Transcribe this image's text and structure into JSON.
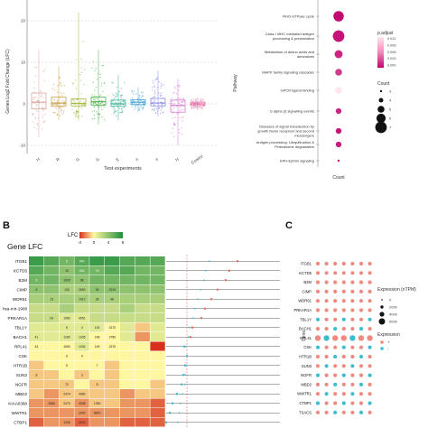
{
  "panelA": {
    "ylabel": "Genes Log2 Fold Change (LFC)",
    "xlabel": "Test experiments",
    "yticks": [
      "20",
      "10",
      "0",
      "-10"
    ],
    "categories": [
      "H",
      "R",
      "G",
      "G",
      "E",
      "F",
      "F",
      "H",
      "Control"
    ],
    "colors": [
      "#d9a7a0",
      "#c9a24a",
      "#a5b840",
      "#49b048",
      "#3bb39a",
      "#46a6d6",
      "#8a8ee0",
      "#d67ad0",
      "#e86fa7"
    ],
    "box_stats": [
      {
        "q1": -1.2,
        "median": 0.4,
        "q3": 2.6,
        "lo": -8,
        "hi": 13
      },
      {
        "q1": -0.6,
        "median": 0.2,
        "q3": 1.6,
        "lo": -4,
        "hi": 9
      },
      {
        "q1": -0.5,
        "median": 0.1,
        "q3": 1.2,
        "lo": -4,
        "hi": 22
      },
      {
        "q1": -0.3,
        "median": 0.5,
        "q3": 1.6,
        "lo": -5,
        "hi": 13
      },
      {
        "q1": -0.6,
        "median": 0.0,
        "q3": 0.9,
        "lo": -4,
        "hi": 7
      },
      {
        "q1": -0.2,
        "median": 0.4,
        "q3": 1.0,
        "lo": -2,
        "hi": 4
      },
      {
        "q1": -0.5,
        "median": 0.2,
        "q3": 1.3,
        "lo": -3,
        "hi": 8
      },
      {
        "q1": -2.0,
        "median": -0.4,
        "q3": 0.9,
        "lo": -10,
        "hi": 6
      },
      {
        "q1": -0.4,
        "median": 0.0,
        "q3": 0.4,
        "lo": -1.5,
        "hi": 1.5
      }
    ]
  },
  "panelDot": {
    "ylabel": "Pathway",
    "xlabel": "Count",
    "pathways": [
      "RHO GTPase cycle",
      "Class I MHC mediated antigen processing & presentation",
      "Metabolism of amino acids and derivatives",
      "MAPK family signaling cascades",
      "GPCR ligand binding",
      "G alpha (i) signalling events",
      "Diseases of signal transduction by growth factor receptors and second messengers",
      "Antigen processing: Ubiquitination & Proteasome degradation",
      "EPH-Ephrin signaling"
    ],
    "dots": [
      {
        "count": 6.5,
        "padjust": 0.0005
      },
      {
        "count": 7.0,
        "padjust": 0.001
      },
      {
        "count": 5.5,
        "padjust": 0.002
      },
      {
        "count": 5.0,
        "padjust": 0.003
      },
      {
        "count": 5.0,
        "padjust": 0.012
      },
      {
        "count": 4.5,
        "padjust": 0.002
      },
      {
        "count": 4.5,
        "padjust": 0.001
      },
      {
        "count": 4.5,
        "padjust": 0.0015
      },
      {
        "count": 3.0,
        "padjust": 0.001
      }
    ],
    "legend": {
      "padjust_title": "p.adjust",
      "padjust_ticks": [
        "0.012",
        "0.009",
        "0.006",
        "0.003",
        "0.000"
      ],
      "count_title": "Count",
      "count_ticks": [
        "3",
        "4",
        "5",
        "6",
        "7"
      ]
    }
  },
  "panelB": {
    "label": "B",
    "heatmap_title": "Gene LFC",
    "lfc_title": "LFC",
    "lfc_ticks": [
      "-4",
      "0",
      "4",
      "8"
    ],
    "genes": [
      "ITGB1",
      "KCTD5",
      "B2M",
      "CIMP",
      "WDR61",
      "hsa-mir-1908",
      "PRKAR1A",
      "TBL1Y",
      "BACH1",
      "RPL41",
      "CSK",
      "HTR1B",
      "SUN3",
      "NGFR",
      "MBD2",
      "KIAA0368",
      "WWTR1",
      "CTBP1"
    ],
    "cell_labels": [
      [
        "",
        "",
        "5",
        "947",
        "",
        "",
        "",
        "",
        ""
      ],
      [
        "",
        "",
        "10",
        "541",
        "74",
        "",
        "",
        "",
        ""
      ],
      [
        "6",
        "",
        "1029",
        "98",
        "",
        "",
        "",
        "",
        ""
      ],
      [
        "6",
        "",
        "126",
        "3050",
        "94",
        "2210",
        "",
        "",
        ""
      ],
      [
        "",
        "13",
        "",
        "1012",
        "36",
        "80",
        "",
        "",
        ""
      ],
      [
        "",
        "",
        "",
        "",
        "",
        "",
        "",
        "",
        ""
      ],
      [
        "",
        "24",
        "1080",
        "4051",
        "",
        "",
        "",
        "",
        ""
      ],
      [
        "",
        "",
        "8",
        "4",
        "100",
        "3170",
        "",
        "",
        ""
      ],
      [
        "41",
        "",
        "1180",
        "1035",
        "148",
        "2780",
        "",
        "",
        ""
      ],
      [
        "44",
        "",
        "1650",
        "1034",
        "149",
        "1570",
        "",
        "",
        ""
      ],
      [
        "",
        "",
        "6",
        "9",
        "",
        "",
        "",
        "",
        ""
      ],
      [
        "",
        "",
        "5",
        "",
        "7",
        "",
        "",
        "",
        ""
      ],
      [
        "8",
        "",
        "",
        "3",
        "",
        "",
        "",
        "",
        ""
      ],
      [
        "",
        "",
        "72",
        "",
        "8",
        "",
        "",
        "",
        ""
      ],
      [
        "",
        "",
        "2474",
        "4080",
        "",
        "",
        "",
        "",
        ""
      ],
      [
        "",
        "2580",
        "2473",
        "4038",
        "1390",
        "",
        "",
        "",
        ""
      ],
      [
        "",
        "",
        "",
        "2002",
        "5870",
        "",
        "",
        "",
        ""
      ],
      [
        "",
        "",
        "1205",
        "4024",
        "",
        "",
        "",
        "",
        ""
      ]
    ],
    "cell_values": [
      [
        7,
        6,
        5,
        6,
        7,
        7,
        6,
        6,
        6
      ],
      [
        6,
        5,
        4,
        5,
        5,
        6,
        6,
        5,
        5
      ],
      [
        5,
        5,
        4,
        4,
        5,
        5,
        5,
        5,
        5
      ],
      [
        4,
        4,
        3,
        3,
        4,
        4,
        4,
        4,
        4
      ],
      [
        3,
        3,
        3,
        3,
        3,
        3,
        3,
        3,
        3
      ],
      [
        2,
        2,
        3,
        2,
        2,
        2,
        3,
        2,
        2
      ],
      [
        2,
        2,
        1,
        1,
        2,
        2,
        2,
        2,
        2
      ],
      [
        1,
        1,
        1,
        1,
        1,
        0,
        1,
        -1,
        1
      ],
      [
        1,
        1,
        1,
        1,
        0,
        0,
        1,
        -2,
        1
      ],
      [
        0,
        0,
        0,
        1,
        0,
        0,
        0,
        0,
        -4
      ],
      [
        0,
        0,
        0,
        0,
        0,
        0,
        0,
        0,
        0
      ],
      [
        -1,
        0,
        0,
        0,
        0,
        -1,
        0,
        0,
        0
      ],
      [
        -1,
        -1,
        0,
        -1,
        0,
        -1,
        0,
        0,
        0
      ],
      [
        -1,
        -1,
        -1,
        0,
        -1,
        -1,
        0,
        0,
        -1
      ],
      [
        -1,
        -2,
        -1,
        -1,
        -1,
        -1,
        -2,
        -1,
        -1
      ],
      [
        -2,
        -2,
        -1,
        -2,
        -1,
        -1,
        -2,
        -2,
        -3
      ],
      [
        -2,
        -2,
        -2,
        -2,
        -2,
        -2,
        -2,
        -2,
        -3
      ],
      [
        -3,
        -2,
        -2,
        -3,
        -2,
        -2,
        -3,
        -3,
        -3
      ]
    ]
  },
  "panelC": {
    "label": "C",
    "ylabel": "Gene",
    "genes": [
      "ITGB1",
      "KCTD5",
      "B2M",
      "CIMP",
      "WDR61",
      "PRKAR1A",
      "TBL1Y",
      "BACH1",
      "RPL41",
      "CSK",
      "HTR1B",
      "SUN3",
      "NGFR",
      "MBD2",
      "WWTR1",
      "CTBP1",
      "TSACS"
    ],
    "legend": {
      "expr_title": "Expression (nTPM)",
      "expr_ticks": [
        "0",
        "2000",
        "4000",
        "6000"
      ],
      "dir_title": "Expression",
      "dir_items": [
        "+",
        "-"
      ]
    }
  }
}
